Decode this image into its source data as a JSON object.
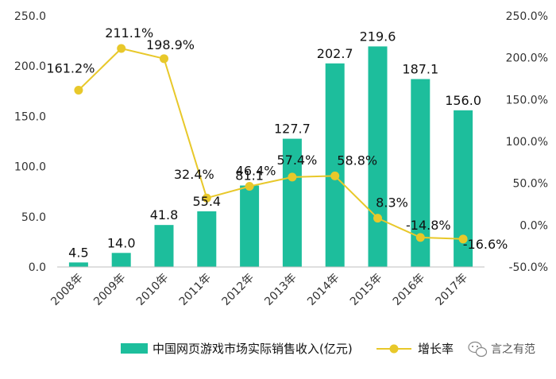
{
  "chart_data": {
    "type": "bar",
    "categories": [
      "2008年",
      "2009年",
      "2010年",
      "2011年",
      "2012年",
      "2013年",
      "2014年",
      "2015年",
      "2016年",
      "2017年"
    ],
    "series": [
      {
        "name": "中国网页游戏市场实际销售收入(亿元)",
        "type": "bar",
        "axis": "left",
        "values": [
          4.5,
          14.0,
          41.8,
          55.4,
          81.1,
          127.7,
          202.7,
          219.6,
          187.1,
          156.0
        ],
        "labels": [
          "4.5",
          "14.0",
          "41.8",
          "55.4",
          "81.1",
          "127.7",
          "202.7",
          "219.6",
          "187.1",
          "156.0"
        ],
        "color": "#1DBE9C"
      },
      {
        "name": "增长率",
        "type": "line",
        "axis": "right",
        "values": [
          161.2,
          211.1,
          198.9,
          32.4,
          46.4,
          57.4,
          58.8,
          8.3,
          -14.8,
          -16.6
        ],
        "labels": [
          "161.2%",
          "211.1%",
          "198.9%",
          "32.4%",
          "46.4%",
          "57.4%",
          "58.8%",
          "8.3%",
          "-14.8%",
          "-16.6%"
        ],
        "color": "#E8C82A"
      }
    ],
    "left_axis": {
      "ylim": [
        0,
        250
      ],
      "ticks": [
        0,
        50,
        100,
        150,
        200,
        250
      ],
      "tick_labels": [
        "0.0",
        "50.0",
        "100.0",
        "150.0",
        "200.0",
        "250.0"
      ]
    },
    "right_axis": {
      "ylim": [
        -50,
        250
      ],
      "ticks": [
        -50,
        0,
        50,
        100,
        150,
        200,
        250
      ],
      "tick_labels": [
        "-50.0%",
        "0.0%",
        "50.0%",
        "100.0%",
        "150.0%",
        "200.0%",
        "250.0%"
      ]
    },
    "legend_position": "bottom",
    "grid": false
  },
  "watermark": {
    "text": "言之有范",
    "icon": "wechat-icon"
  }
}
